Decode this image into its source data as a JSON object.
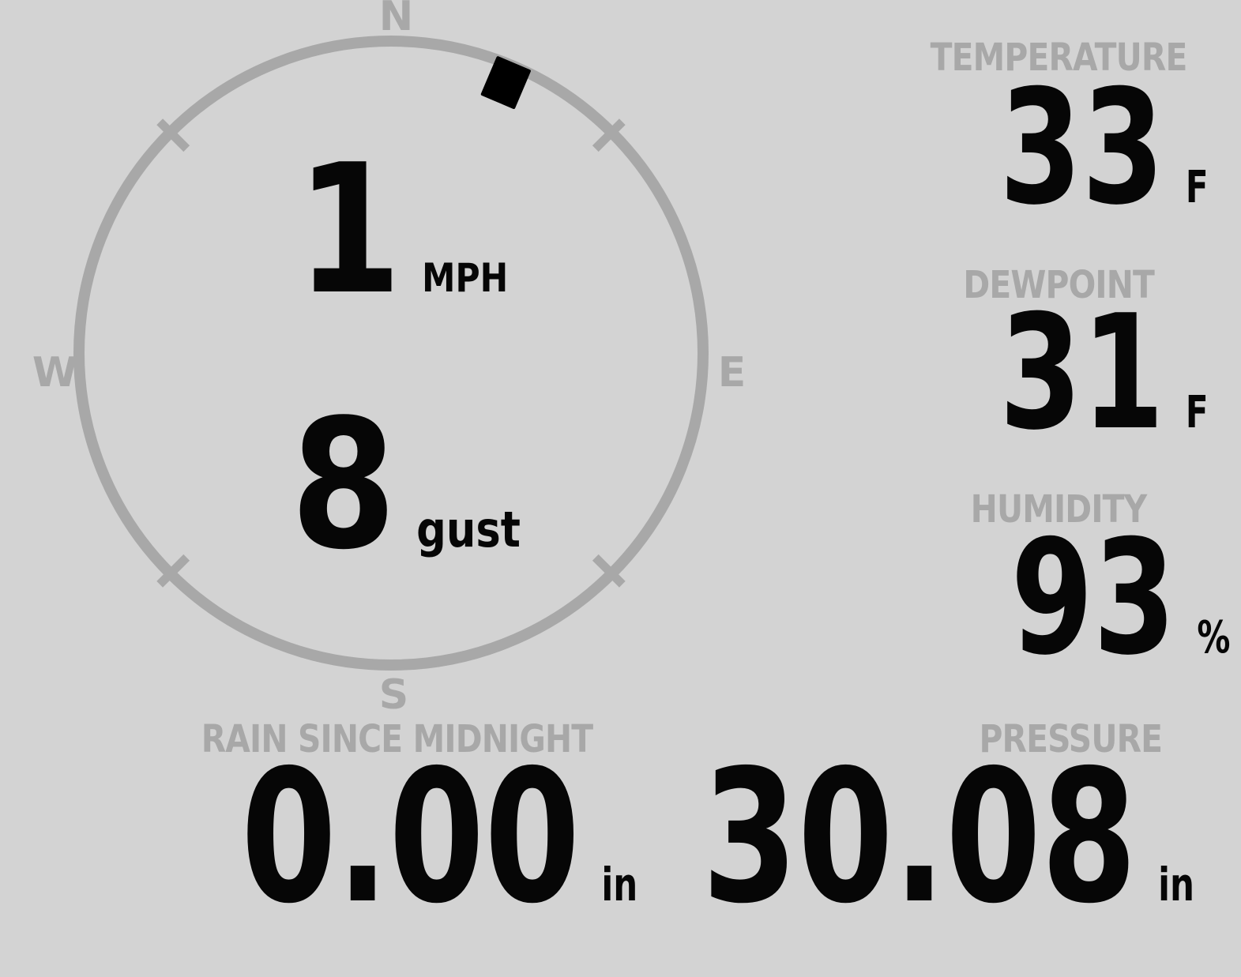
{
  "colors": {
    "background": "#d3d3d3",
    "muted_gray": "#a8a8a8",
    "value_black": "#060606",
    "marker_black": "#000000"
  },
  "compass": {
    "letters": {
      "n": "N",
      "e": "E",
      "s": "S",
      "w": "W"
    },
    "wind_speed": "1",
    "wind_speed_unit": "MPH",
    "wind_gust": "8",
    "wind_gust_unit": "gust",
    "wind_direction_deg": 23
  },
  "metrics": {
    "temperature": {
      "label": "TEMPERATURE",
      "value": "33",
      "unit": "F"
    },
    "dewpoint": {
      "label": "DEWPOINT",
      "value": "31",
      "unit": "F"
    },
    "humidity": {
      "label": "HUMIDITY",
      "value": "93",
      "unit": "%"
    },
    "rain": {
      "label": "RAIN SINCE MIDNIGHT",
      "value": "0.00",
      "unit": "in"
    },
    "pressure": {
      "label": "PRESSURE",
      "value": "30.08",
      "unit": "in"
    }
  }
}
